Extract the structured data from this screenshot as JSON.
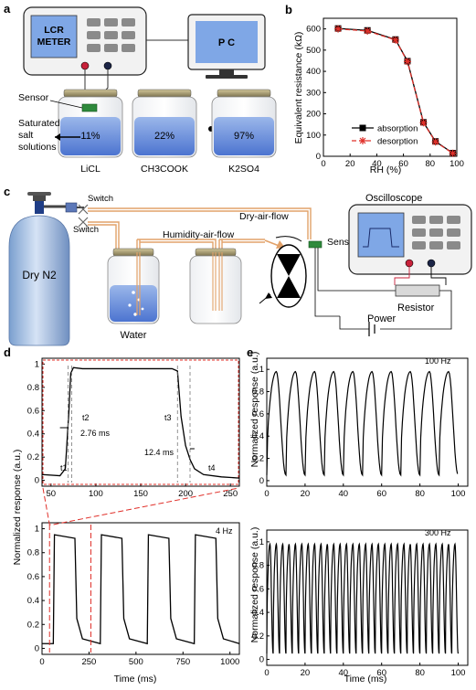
{
  "panels": {
    "a": {
      "letter": "a",
      "meter_label_line1": "LCR",
      "meter_label_line2": "METER",
      "pc_label": "P C",
      "sensor_label": "Sensor",
      "salt_label_line1": "Saturated",
      "salt_label_line2": "salt",
      "salt_label_line3": "solutions",
      "bottles": [
        {
          "percent": "11%",
          "salt": "LiCL"
        },
        {
          "percent": "22%",
          "salt": "CH3COOK"
        },
        {
          "percent": "97%",
          "salt": "K2SO4"
        }
      ]
    },
    "c": {
      "letter": "c",
      "switch1": "Switch",
      "switch2": "Switch",
      "dry_flow": "Dry-air-flow",
      "humid_flow": "Humidity-air-flow",
      "sensor": "Sensor",
      "oscilloscope": "Oscilloscope",
      "gas": "Dry N2",
      "water": "Water",
      "resistor": "Resistor",
      "power": "Power"
    },
    "d": {
      "letter": "d",
      "annot": {
        "t1": "t1",
        "t2": "t2",
        "t3": "t3",
        "t4": "t4",
        "rise": "2.76 ms",
        "fall": "12.4 ms",
        "freq_bottom": "4 Hz"
      }
    },
    "e": {
      "letter": "e",
      "freq_top": "100 Hz",
      "freq_bottom": "300 Hz"
    }
  },
  "chart_data": [
    {
      "id": "b",
      "letter": "b",
      "type": "line",
      "xlabel": "RH (%)",
      "ylabel": "Equivalent resistance (kΩ)",
      "xlim": [
        0,
        100
      ],
      "ylim": [
        0,
        650
      ],
      "xticks": [
        0,
        20,
        40,
        60,
        80,
        100
      ],
      "yticks": [
        0,
        100,
        200,
        300,
        400,
        500,
        600
      ],
      "legend_position": "bottom-right",
      "series": [
        {
          "name": "absorption",
          "color": "#000000",
          "marker": "square",
          "x": [
            11,
            33,
            54,
            63,
            75,
            84,
            97
          ],
          "y": [
            602,
            593,
            550,
            448,
            160,
            70,
            15
          ]
        },
        {
          "name": "desorption",
          "color": "#e0302a",
          "marker": "star",
          "dashed": true,
          "x": [
            11,
            33,
            54,
            63,
            75,
            84,
            97
          ],
          "y": [
            600,
            590,
            548,
            446,
            158,
            68,
            14
          ]
        }
      ]
    },
    {
      "id": "d-top",
      "type": "line",
      "xlim": [
        40,
        260
      ],
      "ylim": [
        -0.05,
        1.05
      ],
      "xticks": [
        50,
        100,
        150,
        200,
        250
      ],
      "yticks": [
        0,
        0.2,
        0.4,
        0.6,
        0.8,
        1
      ],
      "series": [
        {
          "x": [
            40,
            60,
            66,
            70,
            72,
            75,
            85,
            100,
            150,
            185,
            191,
            195,
            200,
            205,
            210,
            220,
            240,
            260
          ],
          "y": [
            0.05,
            0.04,
            0.1,
            0.6,
            0.92,
            0.97,
            0.96,
            0.96,
            0.96,
            0.96,
            0.94,
            0.55,
            0.3,
            0.18,
            0.1,
            0.05,
            0.03,
            0.02
          ]
        }
      ]
    },
    {
      "id": "d-bottom",
      "type": "line",
      "ylabel": "Normalized response (a.u.)",
      "xlabel": "Time (ms)",
      "xlim": [
        0,
        1050
      ],
      "ylim": [
        -0.05,
        1.05
      ],
      "xticks": [
        0,
        250,
        500,
        750,
        1000
      ],
      "yticks": [
        0,
        0.2,
        0.4,
        0.6,
        0.8,
        1
      ],
      "pulses": [
        [
          60,
          175
        ],
        [
          310,
          425
        ],
        [
          560,
          675
        ],
        [
          810,
          925
        ]
      ],
      "high": 0.95,
      "low": 0.04
    },
    {
      "id": "e-top",
      "type": "line",
      "xlim": [
        0,
        105
      ],
      "ylim": [
        -0.05,
        1.1
      ],
      "xticks": [
        0,
        20,
        40,
        60,
        80,
        100
      ],
      "yticks": [
        0,
        0.2,
        0.4,
        0.6,
        0.8,
        1
      ],
      "frequency_hz": 100
    },
    {
      "id": "e-bottom",
      "type": "line",
      "xlabel": "Time (ms)",
      "xlim": [
        0,
        105
      ],
      "ylim": [
        -0.05,
        1.1
      ],
      "xticks": [
        0,
        20,
        40,
        60,
        80,
        100
      ],
      "yticks": [
        0,
        0.2,
        0.4,
        0.6,
        0.8,
        1
      ],
      "frequency_hz": 300
    }
  ]
}
